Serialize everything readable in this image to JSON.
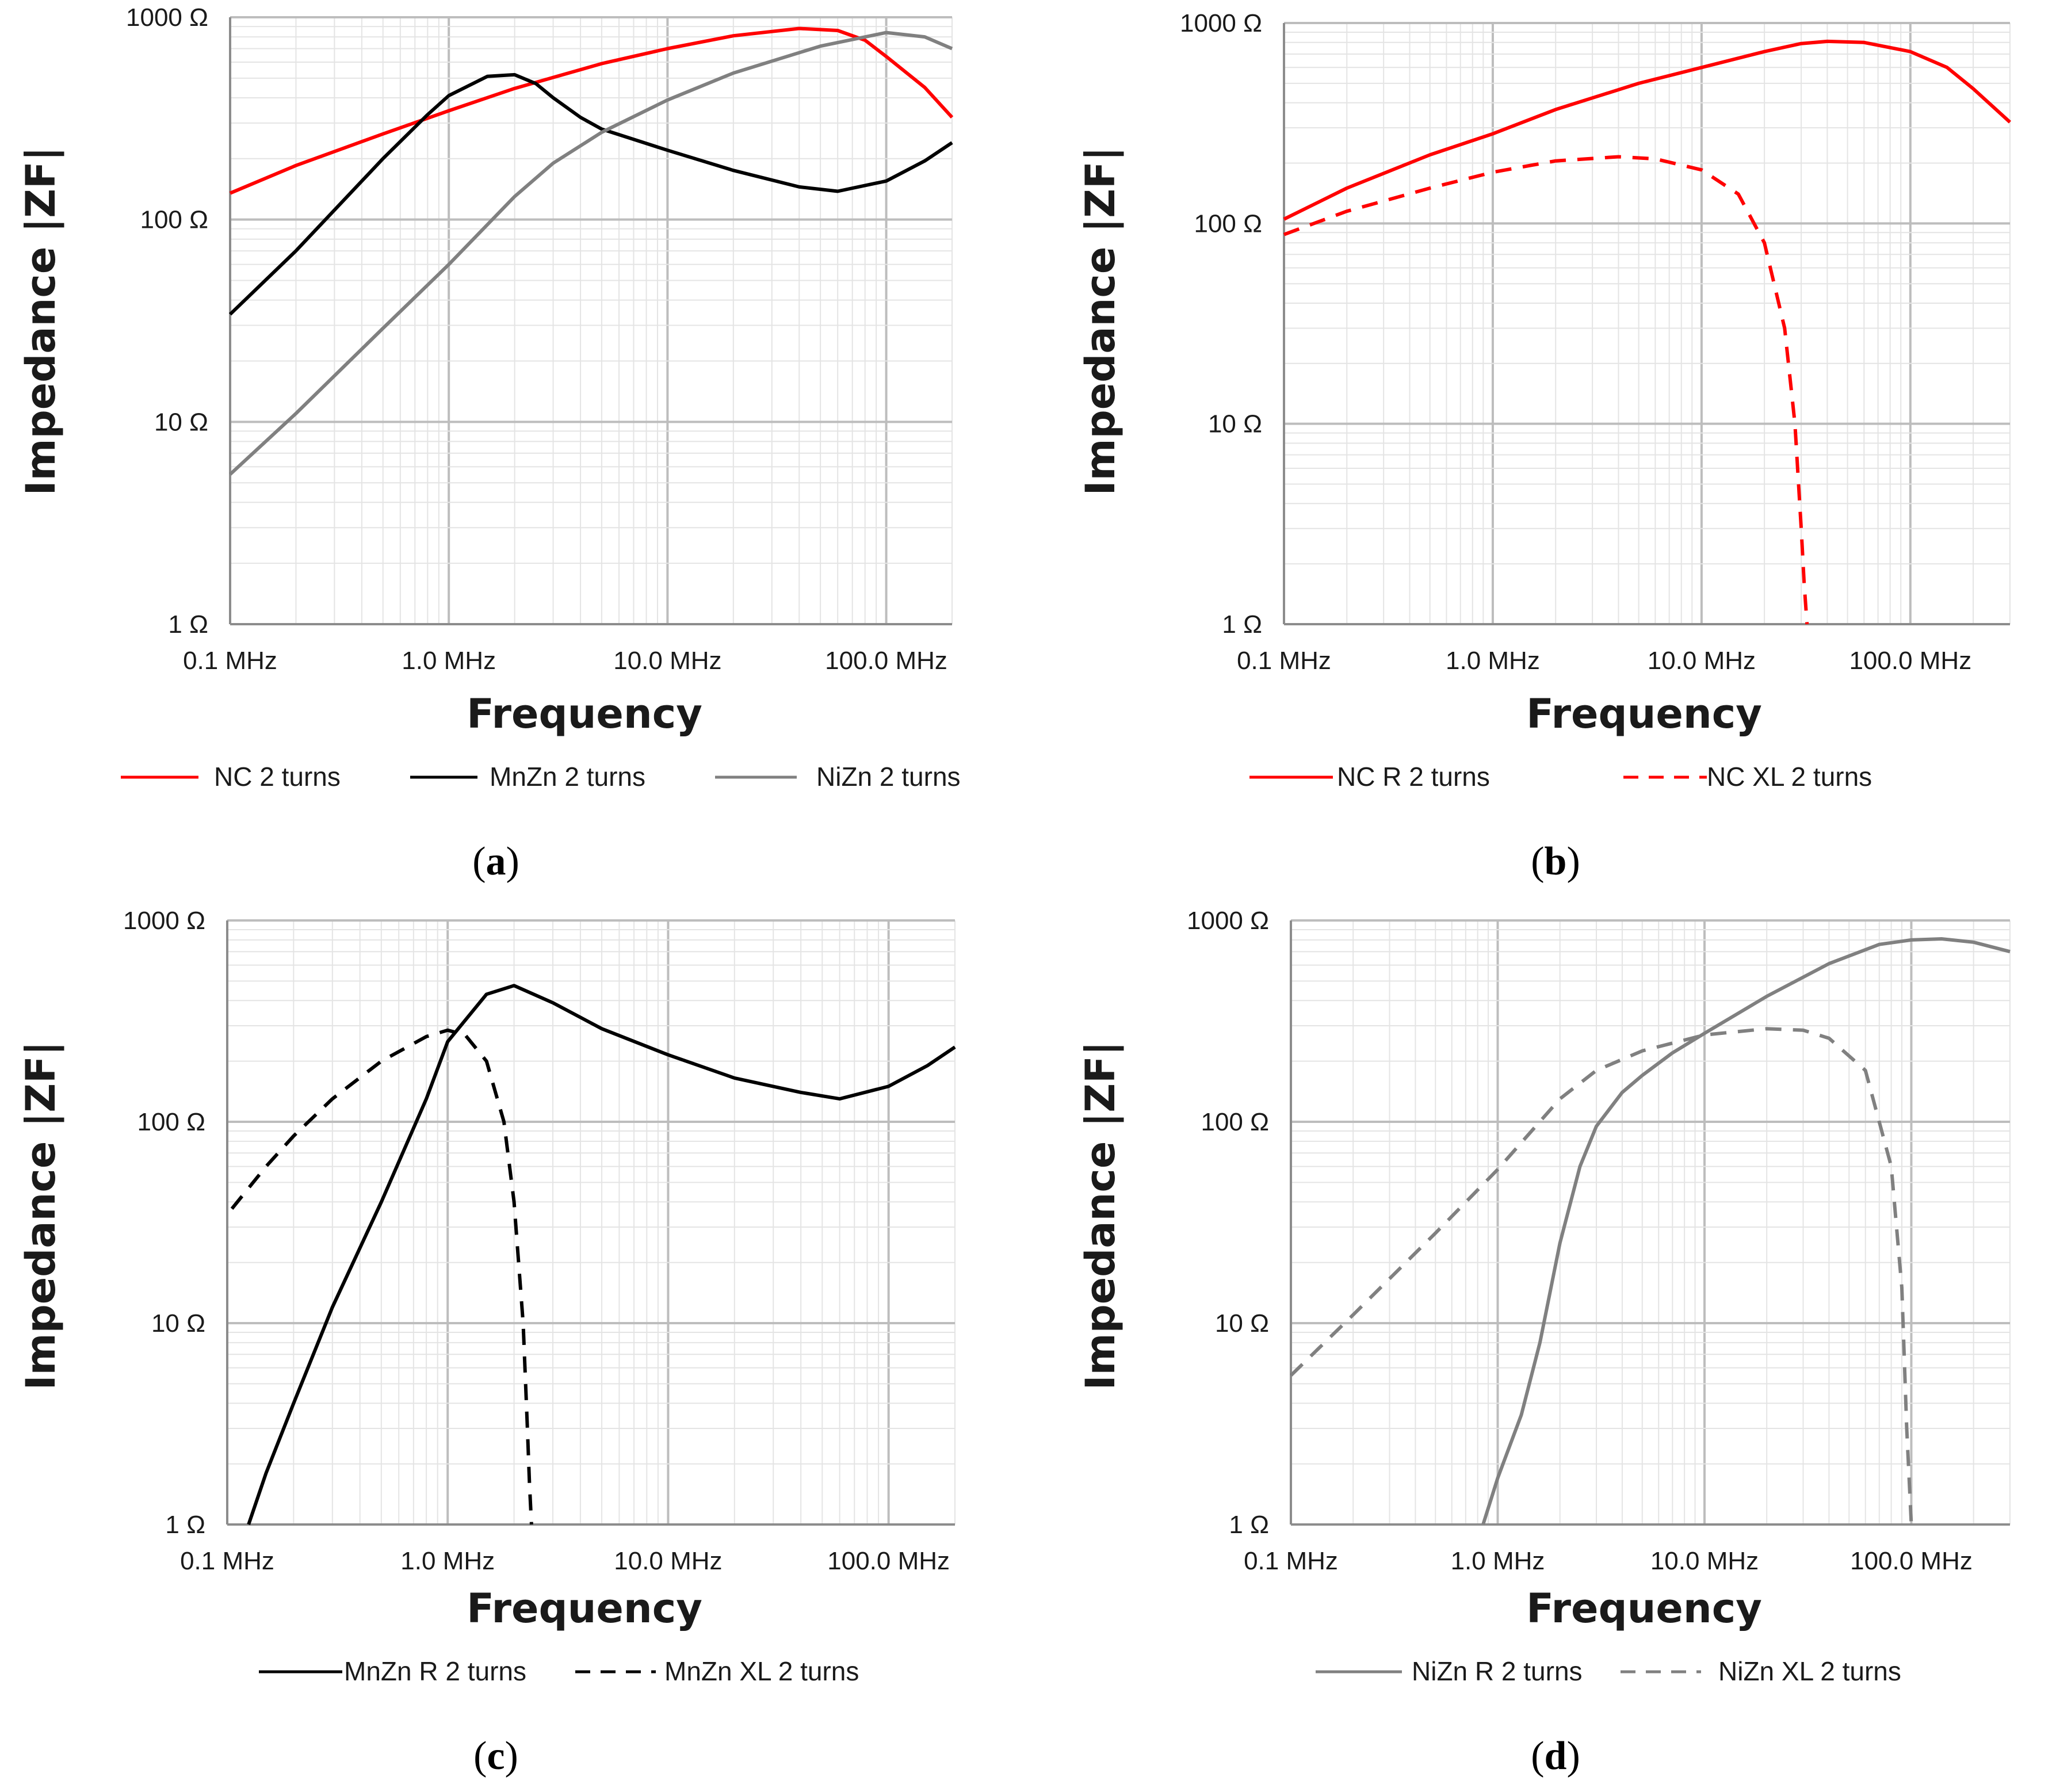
{
  "chart_data": [
    {
      "type": "line",
      "panel": "(a)",
      "caption_open": "(",
      "caption_letter": "a",
      "caption_close": ")",
      "xlabel": "Frequency",
      "ylabel": "Impedance |ZF|",
      "xscale": "log",
      "yscale": "log",
      "xlim": [
        0.1,
        200
      ],
      "ylim": [
        1,
        1000
      ],
      "xtick_labels": [
        "0.1 MHz",
        "1.0 MHz",
        "10.0 MHz",
        "100.0 MHz"
      ],
      "ytick_labels": [
        "1 Ω",
        "10 Ω",
        "100 Ω",
        "1000 Ω"
      ],
      "grid": true,
      "legend_position": "bottom",
      "series": [
        {
          "name": "NC 2 turns",
          "color": "#ff0000",
          "style": "solid",
          "x": [
            0.1,
            0.2,
            0.5,
            1.0,
            2.0,
            5.0,
            10.0,
            20.0,
            40.0,
            60.0,
            80.0,
            100.0,
            150.0,
            200.0
          ],
          "y": [
            135,
            185,
            265,
            345,
            445,
            590,
            700,
            810,
            880,
            860,
            770,
            640,
            450,
            320
          ]
        },
        {
          "name": "MnZn 2 turns",
          "color": "#000000",
          "style": "solid",
          "x": [
            0.1,
            0.2,
            0.5,
            0.8,
            1.0,
            1.5,
            2.0,
            2.5,
            3.0,
            4.0,
            5.0,
            10.0,
            20.0,
            40.0,
            60.0,
            100.0,
            150.0,
            200.0
          ],
          "y": [
            34,
            70,
            200,
            330,
            410,
            510,
            520,
            470,
            400,
            320,
            280,
            220,
            175,
            145,
            138,
            155,
            195,
            240
          ]
        },
        {
          "name": "NiZn 2 turns",
          "color": "#808080",
          "style": "solid",
          "x": [
            0.1,
            0.2,
            0.5,
            1.0,
            2.0,
            3.0,
            5.0,
            10.0,
            20.0,
            50.0,
            100.0,
            150.0,
            200.0
          ],
          "y": [
            5.5,
            11,
            29,
            60,
            130,
            190,
            270,
            390,
            530,
            720,
            840,
            800,
            700
          ]
        }
      ]
    },
    {
      "type": "line",
      "panel": "(b)",
      "caption_open": "(",
      "caption_letter": "b",
      "caption_close": ")",
      "xlabel": "Frequency",
      "ylabel": "Impedance |ZF|",
      "xscale": "log",
      "yscale": "log",
      "xlim": [
        0.1,
        300
      ],
      "ylim": [
        1,
        1000
      ],
      "xtick_labels": [
        "0.1 MHz",
        "1.0 MHz",
        "10.0 MHz",
        "100.0 MHz"
      ],
      "ytick_labels": [
        "1 Ω",
        "10 Ω",
        "100 Ω",
        "1000 Ω"
      ],
      "grid": true,
      "legend_position": "bottom",
      "series": [
        {
          "name": "NC R 2 turns",
          "color": "#ff0000",
          "style": "solid",
          "x": [
            0.1,
            0.2,
            0.5,
            1.0,
            2.0,
            5.0,
            10.0,
            20.0,
            30.0,
            40.0,
            60.0,
            100.0,
            150.0,
            200.0,
            300.0
          ],
          "y": [
            105,
            150,
            220,
            280,
            370,
            500,
            600,
            720,
            790,
            810,
            800,
            720,
            600,
            470,
            320
          ]
        },
        {
          "name": "NC XL 2 turns",
          "color": "#ff0000",
          "style": "dashed",
          "x": [
            0.1,
            0.2,
            0.5,
            1.0,
            2.0,
            4.0,
            6.0,
            10.0,
            15.0,
            20.0,
            25.0,
            28.0,
            30.0,
            31.0,
            32.0
          ],
          "y": [
            88,
            115,
            150,
            180,
            205,
            215,
            210,
            185,
            140,
            80,
            30,
            10,
            3,
            1.6,
            1.0
          ]
        }
      ]
    },
    {
      "type": "line",
      "panel": "(c)",
      "caption_open": "(",
      "caption_letter": "c",
      "caption_close": ")",
      "xlabel": "Frequency",
      "ylabel": "Impedance |ZF|",
      "xscale": "log",
      "yscale": "log",
      "xlim": [
        0.1,
        200
      ],
      "ylim": [
        1,
        1000
      ],
      "xtick_labels": [
        "0.1 MHz",
        "1.0 MHz",
        "10.0 MHz",
        "100.0 MHz"
      ],
      "ytick_labels": [
        "1 Ω",
        "10 Ω",
        "100 Ω",
        "1000 Ω"
      ],
      "grid": true,
      "legend_position": "bottom",
      "series": [
        {
          "name": "MnZn R 2 turns",
          "color": "#000000",
          "style": "solid",
          "x": [
            0.125,
            0.15,
            0.2,
            0.3,
            0.5,
            0.8,
            1.0,
            1.5,
            2.0,
            3.0,
            5.0,
            10.0,
            20.0,
            40.0,
            60.0,
            100.0,
            150.0,
            200.0
          ],
          "y": [
            1.0,
            1.8,
            4,
            12,
            40,
            130,
            250,
            430,
            475,
            390,
            290,
            215,
            165,
            140,
            130,
            150,
            190,
            235
          ]
        },
        {
          "name": "MnZn XL 2 turns",
          "color": "#000000",
          "style": "dashed",
          "x": [
            0.105,
            0.15,
            0.2,
            0.3,
            0.5,
            0.8,
            1.0,
            1.2,
            1.5,
            1.8,
            2.0,
            2.2,
            2.3,
            2.35,
            2.4
          ],
          "y": [
            37,
            60,
            85,
            130,
            200,
            265,
            285,
            270,
            200,
            100,
            40,
            10,
            3,
            1.6,
            1.0
          ]
        }
      ]
    },
    {
      "type": "line",
      "panel": "(d)",
      "caption_open": "(",
      "caption_letter": "d",
      "caption_close": ")",
      "xlabel": "Frequency",
      "ylabel": "Impedance |ZF|",
      "xscale": "log",
      "yscale": "log",
      "xlim": [
        0.1,
        300
      ],
      "ylim": [
        1,
        1000
      ],
      "xtick_labels": [
        "0.1 MHz",
        "1.0 MHz",
        "10.0 MHz",
        "100.0 MHz"
      ],
      "ytick_labels": [
        "1 Ω",
        "10 Ω",
        "100 Ω",
        "1000 Ω"
      ],
      "grid": true,
      "legend_position": "bottom",
      "series": [
        {
          "name": "NiZn R 2 turns",
          "color": "#808080",
          "style": "solid",
          "x": [
            0.85,
            1.0,
            1.3,
            1.6,
            2.0,
            2.5,
            3.0,
            4.0,
            5.0,
            7.0,
            10.0,
            20.0,
            40.0,
            70.0,
            100.0,
            140.0,
            200.0,
            300.0
          ],
          "y": [
            1.0,
            1.7,
            3.5,
            8,
            25,
            60,
            95,
            140,
            170,
            220,
            275,
            420,
            610,
            760,
            800,
            810,
            780,
            700
          ]
        },
        {
          "name": "NiZn XL 2 turns",
          "color": "#808080",
          "style": "dashed",
          "x": [
            0.1,
            0.2,
            0.5,
            1.0,
            2.0,
            3.0,
            5.0,
            10.0,
            20.0,
            30.0,
            40.0,
            60.0,
            80.0,
            90.0,
            95.0,
            100.0
          ],
          "y": [
            5.5,
            11,
            28,
            58,
            130,
            180,
            225,
            270,
            290,
            285,
            260,
            180,
            60,
            15,
            3,
            1.0
          ]
        }
      ]
    }
  ]
}
